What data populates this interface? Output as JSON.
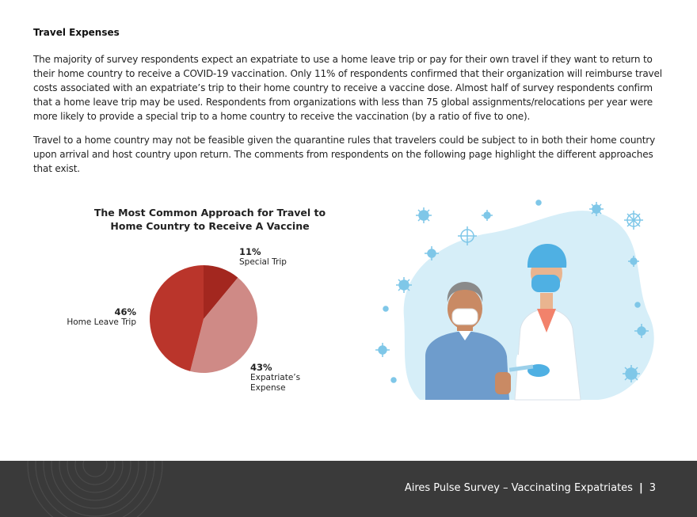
{
  "section": {
    "heading": "Travel Expenses",
    "paragraphs": [
      "The majority of survey respondents expect an expatriate to use a home leave trip or pay for their own travel if they want to return to their home country to receive a COVID-19 vaccination. Only 11% of respondents confirmed that their organization will reimburse travel costs associated with an expatriate’s trip to their home country to receive a vaccine dose. Almost half of survey respondents confirm that a home leave trip may be used. Respondents from organizations with less than 75 global assignments/relocations per year were more likely to provide a special trip to a home country to receive the vaccination (by a ratio of five to one).",
      "Travel to a home country may not be feasible given the quarantine rules that travelers could be subject to in both their home country upon arrival and host country upon return. The comments from respondents on the following page highlight the different approaches that exist."
    ]
  },
  "chart_data": {
    "type": "pie",
    "title": "The Most Common Approach for Travel to Home Country to Receive A Vaccine",
    "slices": [
      {
        "label": "Special Trip",
        "value": 11,
        "value_label": "11%",
        "color": "#a3271f"
      },
      {
        "label": "Expatriate’s Expense",
        "value": 43,
        "value_label": "43%",
        "color": "#cf8a86"
      },
      {
        "label": "Home Leave Trip",
        "value": 46,
        "value_label": "46%",
        "color": "#ba352b"
      }
    ]
  },
  "illustration": {
    "icon": "vaccination-illustration"
  },
  "footer": {
    "title": "Aires Pulse Survey – Vaccinating Expatriates",
    "separator": "|",
    "page_number": "3"
  },
  "colors": {
    "footer_bg": "#3a3a3a",
    "accent_red": "#ba352b"
  }
}
